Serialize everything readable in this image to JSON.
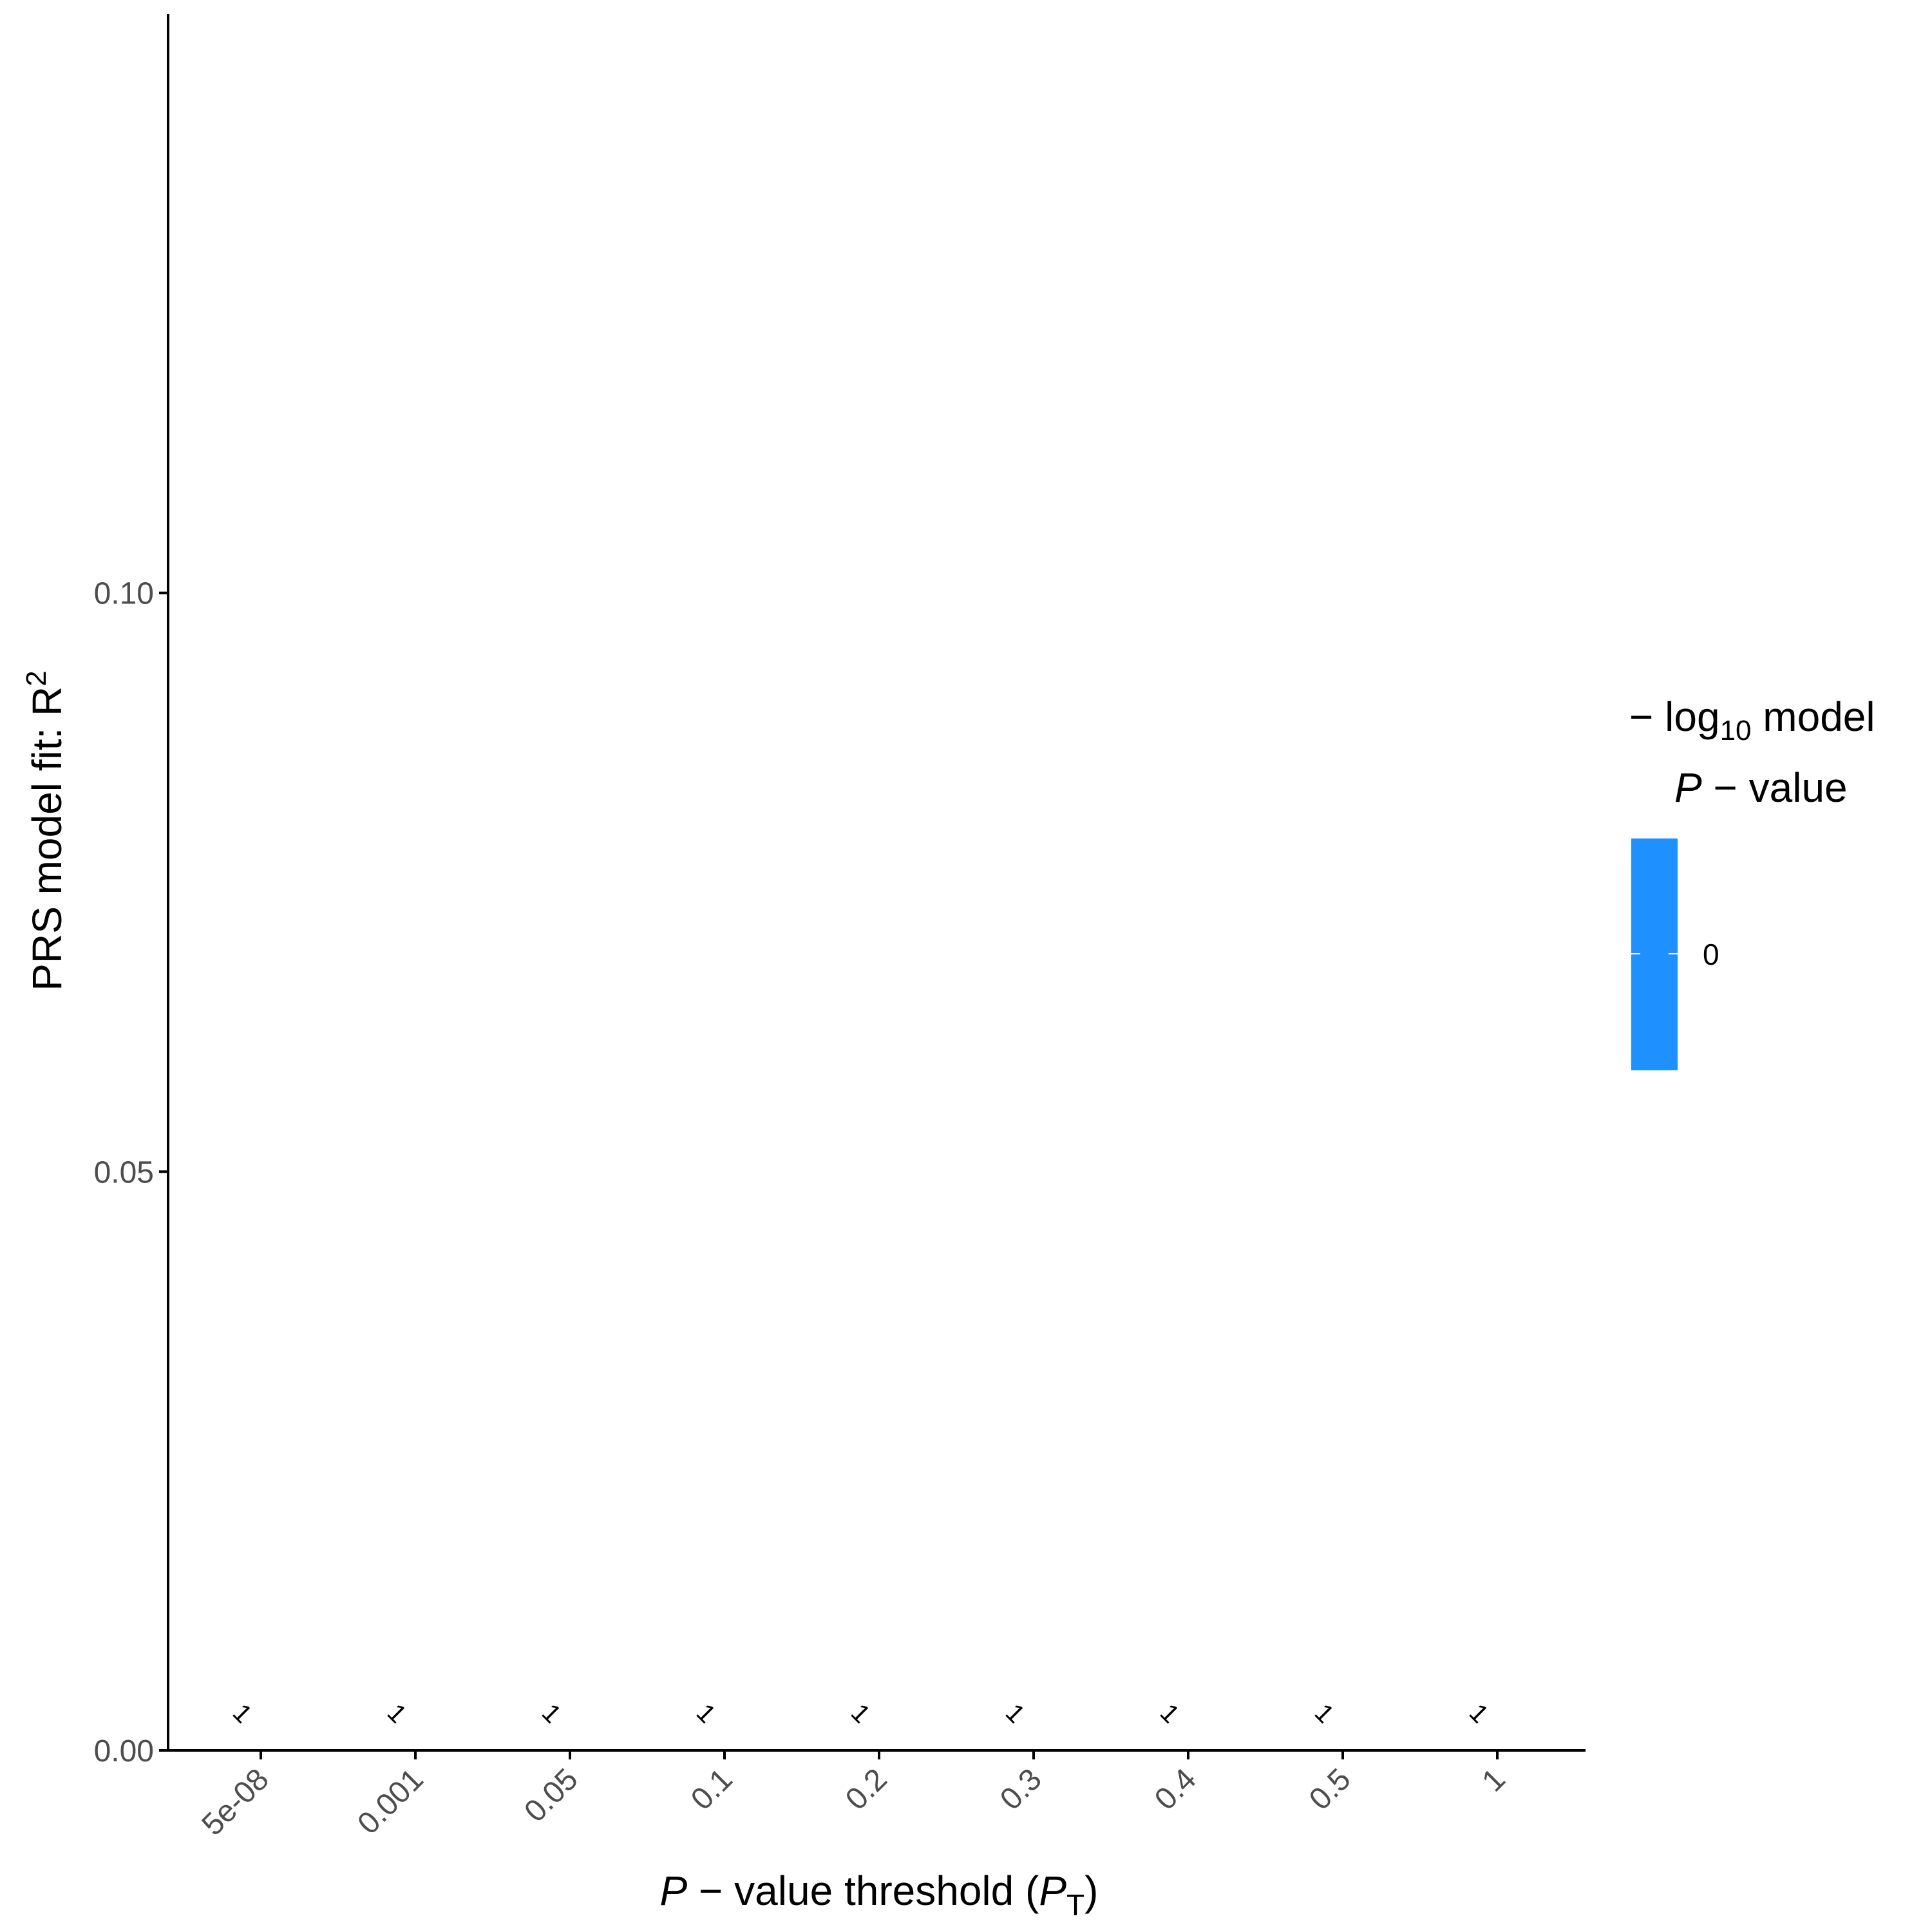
{
  "chart_data": {
    "type": "bar",
    "categories": [
      "5e-08",
      "0.001",
      "0.05",
      "0.1",
      "0.2",
      "0.3",
      "0.4",
      "0.5",
      "1"
    ],
    "values": [
      0,
      0,
      0,
      0,
      0,
      0,
      0,
      0,
      0
    ],
    "bar_labels": [
      "1",
      "1",
      "1",
      "1",
      "1",
      "1",
      "1",
      "1",
      "1"
    ],
    "xlabel": {
      "italic_p": "P",
      "mid": " − value threshold (",
      "italic_p2": "P",
      "sub": "T",
      "end": ")"
    },
    "ylabel": {
      "main": "PRS model fit:  R",
      "sup": "2"
    },
    "y_ticks": [
      "0.00",
      "0.05",
      "0.10"
    ],
    "y_tick_values": [
      0,
      0.05,
      0.1
    ],
    "ylim": [
      0,
      0.15
    ],
    "grid": false,
    "legend": {
      "position": "right",
      "title_line1_prefix": "− log",
      "title_line1_sub": "10",
      "title_line1_suffix": " model",
      "title_line2_italic": "P",
      "title_line2_rest": " − value",
      "labels": [
        "0"
      ],
      "color": "#1E90FF"
    },
    "colors": {
      "bar": "#1E90FF",
      "axis": "#000000"
    }
  }
}
